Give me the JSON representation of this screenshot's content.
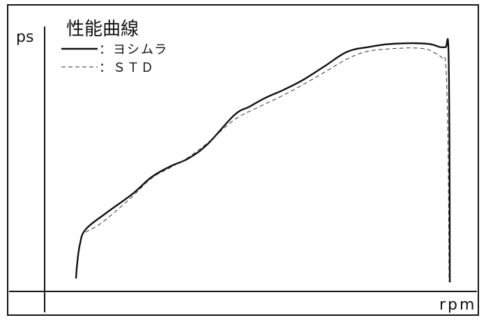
{
  "chart_data": {
    "type": "line",
    "title": "性能曲線",
    "xlabel": "rpm",
    "ylabel": "ps",
    "xlim": [
      0,
      100
    ],
    "ylim": [
      0,
      100
    ],
    "grid": false,
    "legend_position": "top-left",
    "series": [
      {
        "name": "：ヨシムラ",
        "style": "solid",
        "color": "#111111",
        "x": [
          0.0,
          0.3,
          1.0,
          2.5,
          8.0,
          15.0,
          20.0,
          25.0,
          30.0,
          35.0,
          42.0,
          46.0,
          50.0,
          55.0,
          60.0,
          66.0,
          72.0,
          78.0,
          82.0,
          86.0,
          90.0,
          94.0,
          96.5,
          98.0,
          98.7,
          99.0,
          99.1
        ],
        "values": [
          1.6,
          7.5,
          15.6,
          22.0,
          29.0,
          37.0,
          44.0,
          48.5,
          52.0,
          58.0,
          70.0,
          73.5,
          77.0,
          80.5,
          84.5,
          90.5,
          96.5,
          98.5,
          99.5,
          99.9,
          100.0,
          99.6,
          98.4,
          98.4,
          98.8,
          60.0,
          0.0
        ]
      },
      {
        "name": "：ＳＴＤ",
        "style": "dashed",
        "color": "#333333",
        "x": [
          2.5,
          6.0,
          10.0,
          15.0,
          20.0,
          25.0,
          30.0,
          35.0,
          42.0,
          48.0,
          54.0,
          60.0,
          66.0,
          72.0,
          77.0,
          82.0,
          87.0,
          90.0,
          93.0,
          95.0,
          97.0,
          98.0,
          98.6,
          98.9
        ],
        "values": [
          21.0,
          24.0,
          29.0,
          36.0,
          43.5,
          48.0,
          52.5,
          58.5,
          68.0,
          73.0,
          77.5,
          82.5,
          88.0,
          93.5,
          96.5,
          97.5,
          98.0,
          98.0,
          97.5,
          96.0,
          94.0,
          91.0,
          60.0,
          0.5
        ]
      }
    ]
  }
}
